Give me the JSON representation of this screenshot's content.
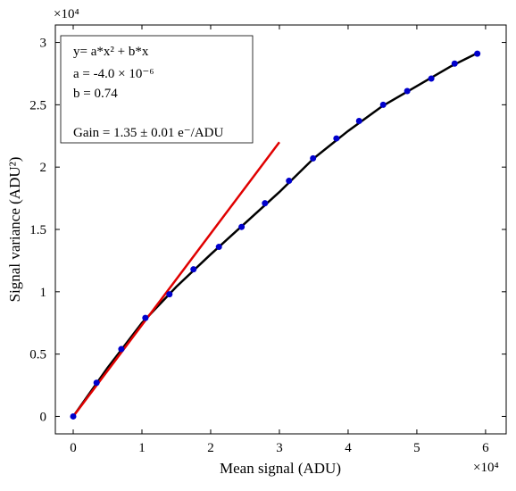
{
  "chart_data": {
    "type": "scatter",
    "x_label": "Mean signal (ADU)",
    "y_label": "Signal variance (ADU²)",
    "x_multiplier": "×10⁴",
    "y_multiplier": "×10⁴",
    "xlim": [
      -0.26,
      6.3
    ],
    "xticks": [
      0,
      1,
      2,
      3,
      4,
      5,
      6
    ],
    "ylim": [
      -0.14,
      3.14
    ],
    "yticks": [
      0,
      0.5,
      1,
      1.5,
      2,
      2.5,
      3
    ],
    "grid": false,
    "annotations": [
      "y= a*x² + b*x",
      "a =  -4.0 × 10⁻⁶",
      "b =  0.74",
      "Gain = 1.35 ± 0.01 e⁻/ADU"
    ],
    "series": [
      {
        "color": "#0000cc",
        "mode": "markers",
        "x": [
          0,
          0.34,
          0.7,
          1.05,
          1.4,
          1.75,
          2.12,
          2.45,
          2.79,
          3.14,
          3.49,
          3.83,
          4.16,
          4.51,
          4.86,
          5.21,
          5.55,
          5.88
        ],
        "values": [
          0,
          0.27,
          0.54,
          0.79,
          0.98,
          1.18,
          1.36,
          1.52,
          1.71,
          1.89,
          2.07,
          2.23,
          2.37,
          2.5,
          2.61,
          2.71,
          2.83,
          2.91
        ]
      },
      {
        "color": "#000000",
        "mode": "line",
        "x": [
          0,
          0.5,
          1,
          1.5,
          2,
          2.5,
          3,
          3.5,
          4,
          4.5,
          5,
          5.5,
          5.9
        ],
        "values": [
          0,
          0.39,
          0.75,
          1.04,
          1.3,
          1.55,
          1.8,
          2.07,
          2.29,
          2.49,
          2.65,
          2.81,
          2.92
        ]
      },
      {
        "color": "#e00000",
        "mode": "line",
        "x": [
          0,
          3.0
        ],
        "values": [
          0,
          2.2
        ]
      }
    ]
  }
}
